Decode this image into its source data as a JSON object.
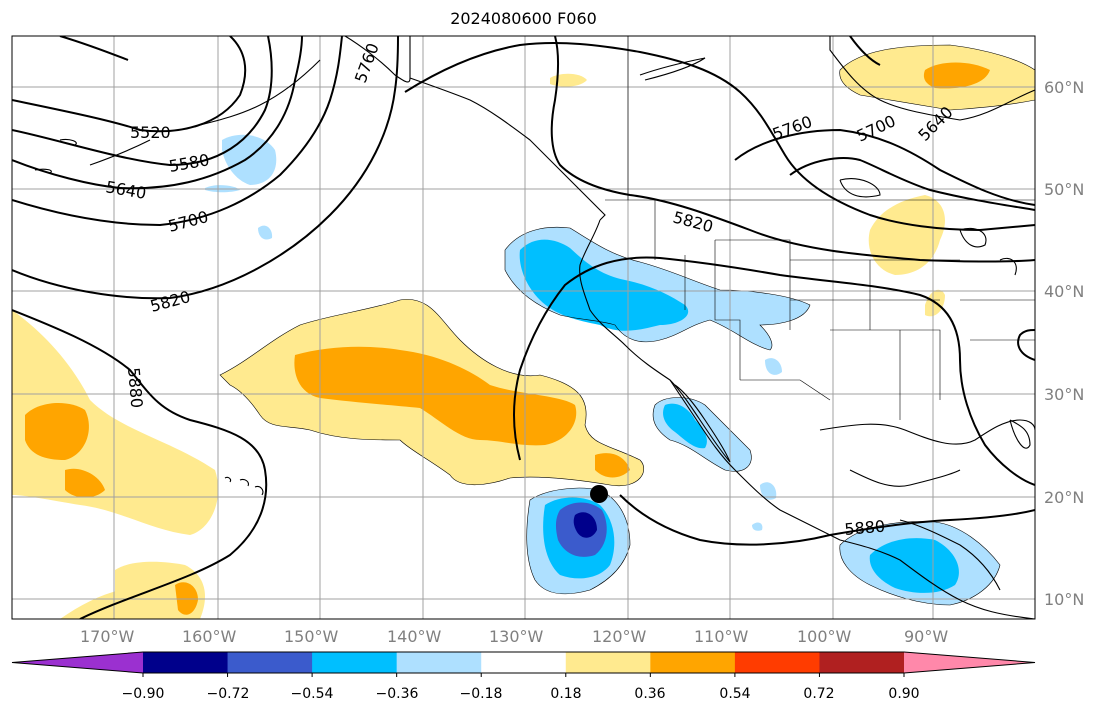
{
  "title": "2024080600 F060",
  "map": {
    "longitude_labels": [
      "170°W",
      "160°W",
      "150°W",
      "140°W",
      "130°W",
      "120°W",
      "110°W",
      "100°W",
      "90°W"
    ],
    "latitude_labels": [
      "60°N",
      "50°N",
      "40°N",
      "30°N",
      "20°N",
      "10°N"
    ],
    "contour_labels": [
      "5520",
      "5580",
      "5640",
      "5700",
      "5760",
      "5820",
      "5880",
      "5760",
      "5700",
      "5640",
      "5820",
      "5880"
    ],
    "marker": {
      "lon": -122.5,
      "lat": 20.2,
      "label": "storm-center"
    }
  },
  "colorbar": {
    "ticks": [
      "−0.90",
      "−0.72",
      "−0.54",
      "−0.36",
      "−0.18",
      "0.18",
      "0.36",
      "0.54",
      "0.72",
      "0.90"
    ],
    "colors": [
      "#9b30d0",
      "#00008b",
      "#3b5bcc",
      "#00bfff",
      "#aee0ff",
      "#ffffff",
      "#ffea8f",
      "#ffa500",
      "#ff3c00",
      "#b02020",
      "#ff88aa"
    ]
  }
}
